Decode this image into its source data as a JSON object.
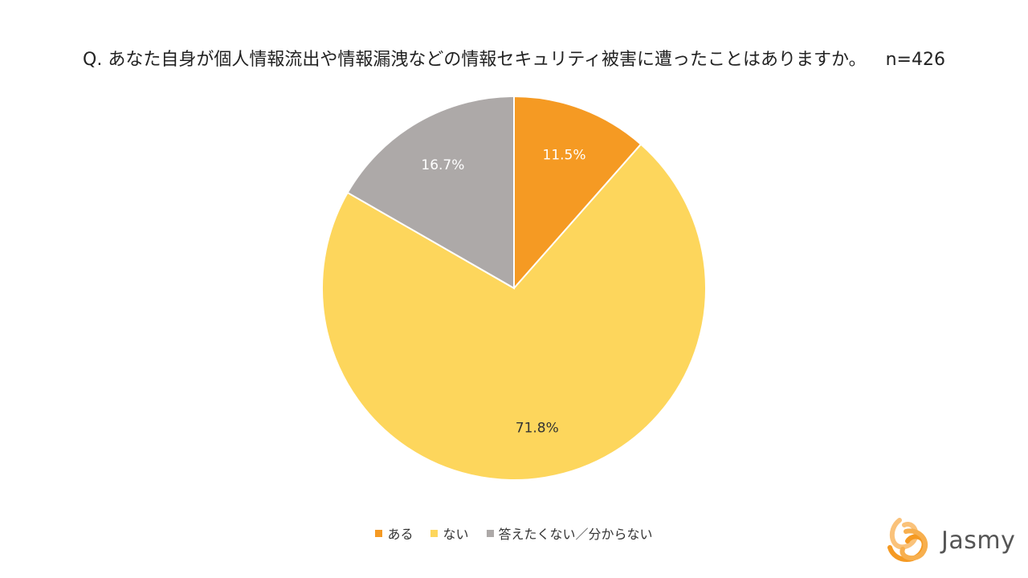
{
  "chart_data": {
    "type": "pie",
    "title": "Q. あなた自身が個人情報流出や情報漏洩などの情報セキュリティ被害に遭ったことはありますか。",
    "sample_size_label": "n=426",
    "slices": [
      {
        "label": "ある",
        "value": 11.5,
        "value_label": "11.5%",
        "color": "#F59A23",
        "label_color": "#ffffff"
      },
      {
        "label": "ない",
        "value": 71.8,
        "value_label": "71.8%",
        "color": "#FDD65C",
        "label_color": "#333333"
      },
      {
        "label": "答えたくない／分からない",
        "value": 16.7,
        "value_label": "16.7%",
        "color": "#ADA9A8",
        "label_color": "#ffffff"
      }
    ],
    "start": "12 o'clock",
    "direction": "clockwise",
    "legend_position": "bottom"
  },
  "logo": {
    "text": "Jasmy",
    "color": "#F59A23"
  }
}
